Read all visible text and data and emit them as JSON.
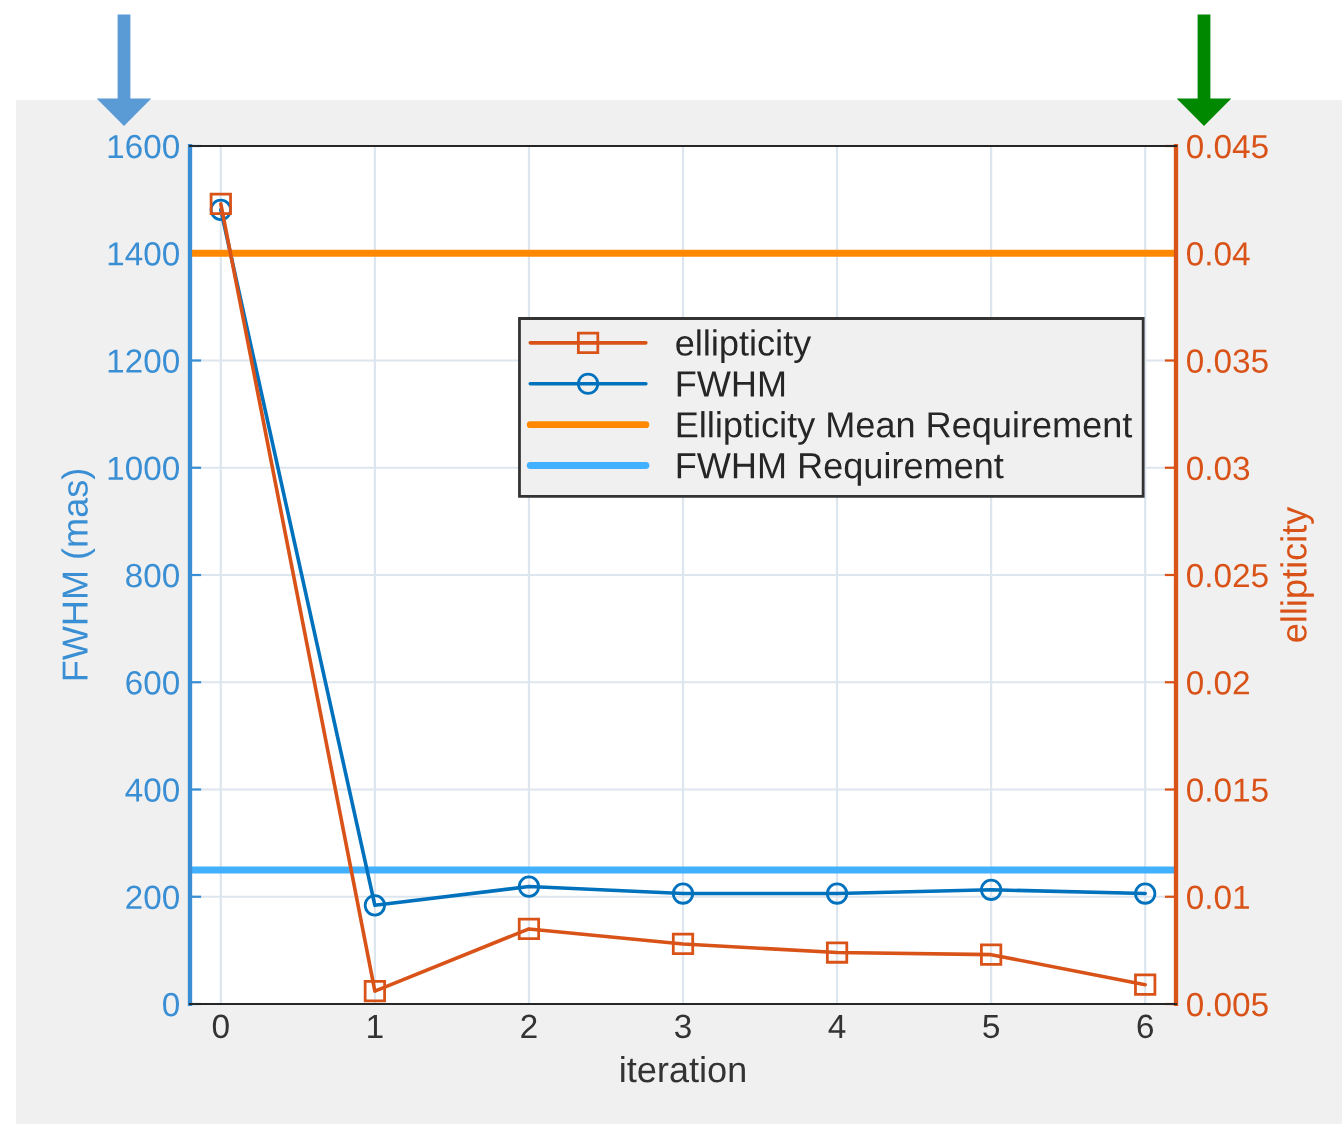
{
  "chart_data": {
    "type": "line",
    "xlabel": "iteration",
    "ylabel": "FWHM (mas)",
    "y2label": "ellipticity",
    "x": [
      0,
      1,
      2,
      3,
      4,
      5,
      6
    ],
    "series": [
      {
        "name": "ellipticity",
        "color": "#d95319",
        "axis": "y2",
        "marker": "square",
        "values": [
          0.0423,
          0.0056,
          0.0085,
          0.0078,
          0.0074,
          0.0073,
          0.0059
        ]
      },
      {
        "name": "FWHM",
        "color": "#0072bd",
        "marker": "circle",
        "values": [
          1481,
          184,
          219,
          206,
          206,
          213,
          206
        ]
      }
    ],
    "ref_lines": [
      {
        "axis": "y2",
        "value": 0.04,
        "label": "Ellipticity Mean Requirement",
        "color": "#ff8800"
      },
      {
        "axis": "y",
        "value": 250,
        "label": "FWHM Requirement",
        "color": "#40b0ff"
      }
    ],
    "xlim": [
      -0.2,
      6.2
    ],
    "xticks": [
      0,
      1,
      2,
      3,
      4,
      5,
      6
    ],
    "ylim": [
      0,
      1600
    ],
    "yticks": [
      0,
      200,
      400,
      600,
      800,
      1000,
      1200,
      1400,
      1600
    ],
    "y2lim": [
      0.005,
      0.045
    ],
    "y2ticks": [
      0.005,
      0.01,
      0.015,
      0.02,
      0.025,
      0.03,
      0.035,
      0.04,
      0.045
    ],
    "grid": true,
    "legend": "top right"
  }
}
